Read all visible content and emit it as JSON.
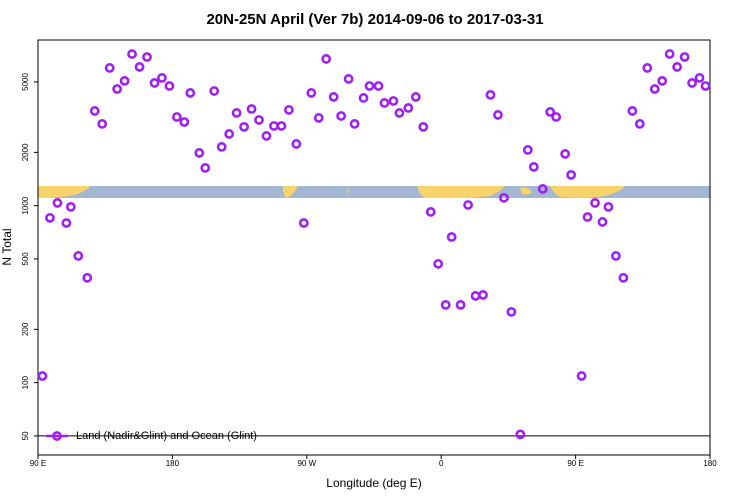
{
  "chart_data": {
    "type": "scatter",
    "title": "20N-25N April (Ver 7b)   2014-09-06 to 2017-03-31",
    "x_label": "Longitude (deg E)",
    "y_label": "N Total",
    "y_scale": "log",
    "xlim": [
      90,
      540
    ],
    "ylim": [
      39,
      8630
    ],
    "xticks": [
      {
        "value": 90,
        "label": "90 E"
      },
      180,
      {
        "value": 270,
        "label": "90 W"
      },
      {
        "value": 360,
        "label": "0"
      },
      {
        "value": 450,
        "label": "90 E"
      },
      {
        "value": 540,
        "label": "180"
      }
    ],
    "yticks": [
      50,
      100,
      200,
      500,
      1000,
      2000,
      5000
    ],
    "reference_line": 50,
    "legend": "bottom-left",
    "series": [
      {
        "name": "Land (Nadir&Glint) and Ocean (Glint)",
        "color": "#a020f0",
        "x": [
          93,
          98,
          103,
          109,
          112,
          117,
          123,
          128,
          133,
          138,
          143,
          148,
          153,
          158,
          163,
          168,
          173,
          178,
          183,
          188,
          192,
          198,
          202,
          208,
          213,
          218,
          223,
          228,
          233,
          238,
          243,
          248,
          253,
          258,
          263,
          268,
          273,
          278,
          283,
          288,
          293,
          298,
          302,
          308,
          312,
          318,
          322,
          328,
          332,
          338,
          343,
          348,
          353,
          358,
          363,
          367,
          373,
          378,
          383,
          388,
          393,
          398,
          402,
          407,
          413,
          418,
          422,
          428,
          433,
          437,
          443,
          447,
          454,
          458,
          463,
          468,
          472,
          477,
          482,
          488,
          493,
          498,
          503,
          508,
          513,
          518,
          523,
          528,
          533,
          537
        ],
        "values": [
          109,
          853,
          1036,
          798,
          984,
          520,
          391,
          3428,
          2897,
          6000,
          4563,
          5070,
          7190,
          6080,
          6920,
          4935,
          5270,
          4745,
          3170,
          2970,
          4335,
          1986,
          1634,
          4445,
          2148,
          2542,
          3342,
          2786,
          3517,
          3049,
          2477,
          2820,
          2820,
          3475,
          2232,
          798,
          4335,
          3131,
          6745,
          4115,
          3212,
          5200,
          2897,
          4060,
          4745,
          4745,
          3805,
          3904,
          3342,
          3565,
          4115,
          2786,
          922,
          469,
          275,
          665,
          275,
          1009,
          309,
          313,
          4225,
          3256,
          1107,
          251,
          51,
          2064,
          1656,
          1244,
          3386,
          3170,
          1960,
          1492,
          109,
          863,
          1036,
          809,
          984,
          520,
          391,
          3428,
          2897,
          6000,
          4563,
          5070,
          7190,
          6080,
          6920,
          4935,
          5270,
          4745
        ]
      }
    ]
  }
}
